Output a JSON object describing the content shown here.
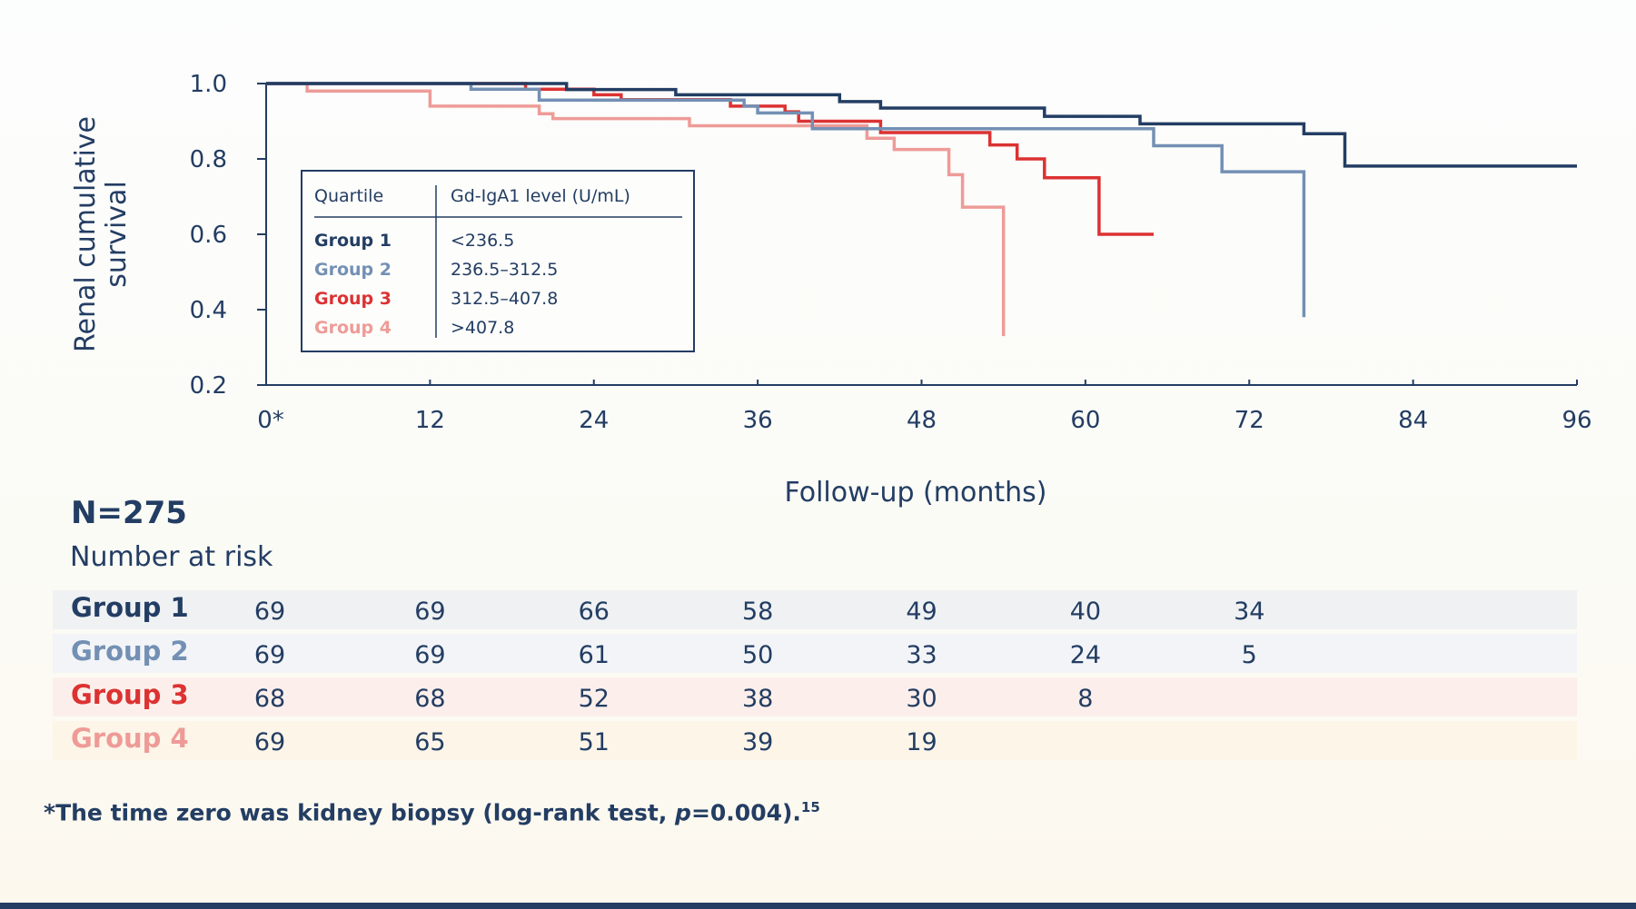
{
  "chart_data": {
    "type": "line",
    "subtype": "kaplan-meier step",
    "ylabel_line1": "Renal cumulative",
    "ylabel_line2": "survival",
    "xlabel": "Follow-up (months)",
    "xlim": [
      0,
      96
    ],
    "ylim": [
      0.2,
      1.0
    ],
    "x_ticks": [
      0,
      12,
      24,
      36,
      48,
      60,
      72,
      84,
      96
    ],
    "x_tick_labels": [
      "0*",
      "12",
      "24",
      "36",
      "48",
      "60",
      "72",
      "84",
      "96"
    ],
    "y_ticks": [
      1.0,
      0.8,
      0.6,
      0.4,
      0.2
    ],
    "y_tick_labels": [
      "1.0",
      "0.8",
      "0.6",
      "0.4",
      "0.2"
    ],
    "grid": false,
    "legend": {
      "placement": "upper-left inside plot",
      "header_quartile": "Quartile",
      "header_level": "Gd-IgA1 level (U/mL)",
      "entries": [
        {
          "name": "Group 1",
          "level": "<236.5"
        },
        {
          "name": "Group 2",
          "level": "236.5–312.5"
        },
        {
          "name": "Group 3",
          "level": "312.5–407.8"
        },
        {
          "name": "Group 4",
          "level": ">407.8"
        }
      ]
    },
    "series": [
      {
        "name": "Group 1",
        "color": "#233d63",
        "points": [
          [
            0,
            1.0
          ],
          [
            22,
            1.0
          ],
          [
            22,
            0.984
          ],
          [
            30,
            0.984
          ],
          [
            30,
            0.97
          ],
          [
            42,
            0.97
          ],
          [
            42,
            0.952
          ],
          [
            45,
            0.952
          ],
          [
            45,
            0.935
          ],
          [
            57,
            0.935
          ],
          [
            57,
            0.913
          ],
          [
            64,
            0.913
          ],
          [
            64,
            0.893
          ],
          [
            76,
            0.893
          ],
          [
            76,
            0.867
          ],
          [
            79,
            0.867
          ],
          [
            79,
            0.781
          ],
          [
            96,
            0.781
          ]
        ]
      },
      {
        "name": "Group 2",
        "color": "#7390b4",
        "points": [
          [
            0,
            1.0
          ],
          [
            15,
            1.0
          ],
          [
            15,
            0.985
          ],
          [
            20,
            0.985
          ],
          [
            20,
            0.956
          ],
          [
            35,
            0.956
          ],
          [
            35,
            0.94
          ],
          [
            36,
            0.94
          ],
          [
            36,
            0.922
          ],
          [
            40,
            0.922
          ],
          [
            40,
            0.88
          ],
          [
            65,
            0.88
          ],
          [
            65,
            0.835
          ],
          [
            70,
            0.835
          ],
          [
            70,
            0.766
          ],
          [
            76,
            0.766
          ],
          [
            76,
            0.38
          ]
        ]
      },
      {
        "name": "Group 3",
        "color": "#dc3232",
        "points": [
          [
            0,
            1.0
          ],
          [
            19,
            1.0
          ],
          [
            19,
            0.985
          ],
          [
            24,
            0.985
          ],
          [
            24,
            0.97
          ],
          [
            26,
            0.97
          ],
          [
            26,
            0.957
          ],
          [
            34,
            0.957
          ],
          [
            34,
            0.94
          ],
          [
            38,
            0.94
          ],
          [
            38,
            0.925
          ],
          [
            39,
            0.925
          ],
          [
            39,
            0.9
          ],
          [
            45,
            0.9
          ],
          [
            45,
            0.87
          ],
          [
            53,
            0.87
          ],
          [
            53,
            0.837
          ],
          [
            55,
            0.837
          ],
          [
            55,
            0.8
          ],
          [
            57,
            0.8
          ],
          [
            57,
            0.75
          ],
          [
            61,
            0.75
          ],
          [
            61,
            0.6
          ],
          [
            65,
            0.6
          ]
        ]
      },
      {
        "name": "Group 4",
        "color": "#ee9b97",
        "points": [
          [
            0,
            1.0
          ],
          [
            3,
            1.0
          ],
          [
            3,
            0.98
          ],
          [
            12,
            0.98
          ],
          [
            12,
            0.94
          ],
          [
            20,
            0.94
          ],
          [
            20,
            0.92
          ],
          [
            21,
            0.92
          ],
          [
            21,
            0.907
          ],
          [
            31,
            0.907
          ],
          [
            31,
            0.888
          ],
          [
            44,
            0.888
          ],
          [
            44,
            0.855
          ],
          [
            46,
            0.855
          ],
          [
            46,
            0.825
          ],
          [
            50,
            0.825
          ],
          [
            50,
            0.758
          ],
          [
            51,
            0.758
          ],
          [
            51,
            0.672
          ],
          [
            54,
            0.672
          ],
          [
            54,
            0.33
          ]
        ]
      }
    ]
  },
  "summary": {
    "n_total": "N=275",
    "risk_title": "Number at risk"
  },
  "risk_table": [
    {
      "name": "Group 1",
      "color": "#233d63",
      "row_bg": "#eff1f3",
      "values": [
        "69",
        "69",
        "66",
        "58",
        "49",
        "40",
        "34"
      ]
    },
    {
      "name": "Group 2",
      "color": "#7390b4",
      "row_bg": "#f2f4f7",
      "values": [
        "69",
        "69",
        "61",
        "50",
        "33",
        "24",
        "5"
      ]
    },
    {
      "name": "Group 3",
      "color": "#dc3232",
      "row_bg": "#fcefeb",
      "values": [
        "68",
        "68",
        "52",
        "38",
        "30",
        "8"
      ]
    },
    {
      "name": "Group 4",
      "color": "#ee9b97",
      "row_bg": "#fcf5e8",
      "values": [
        "69",
        "65",
        "51",
        "39",
        "19"
      ]
    }
  ],
  "footnote": {
    "prefix": "*The time zero was kidney biopsy (log-rank test, ",
    "p_symbol": "p",
    "suffix": "=0.004).",
    "ref": "15"
  },
  "colors": {
    "axis": "#233d63",
    "text": "#233d63"
  }
}
